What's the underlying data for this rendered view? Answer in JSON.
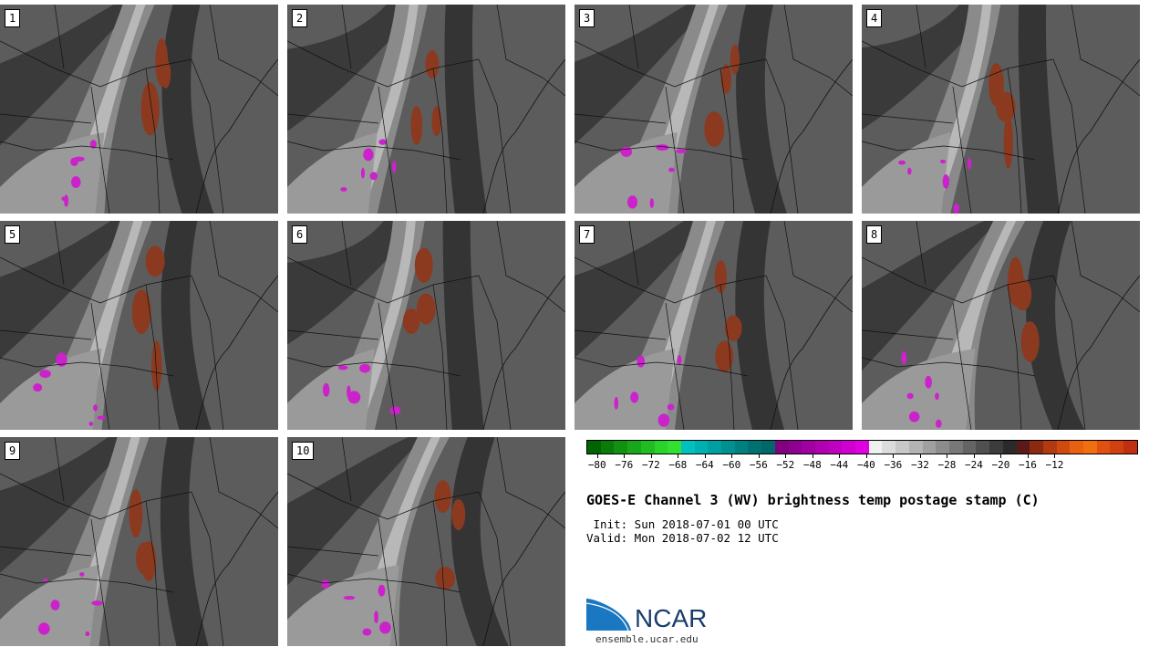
{
  "panels": [
    {
      "label": "1"
    },
    {
      "label": "2"
    },
    {
      "label": "3"
    },
    {
      "label": "4"
    },
    {
      "label": "5"
    },
    {
      "label": "6"
    },
    {
      "label": "7"
    },
    {
      "label": "8"
    },
    {
      "label": "9"
    },
    {
      "label": "10"
    }
  ],
  "colorbar": {
    "colors": [
      "#006400",
      "#0a7a0a",
      "#129012",
      "#1aa61a",
      "#22bc22",
      "#2ad22a",
      "#32e032",
      "#00c0c0",
      "#00b0b0",
      "#00a0a0",
      "#009090",
      "#008080",
      "#007070",
      "#006868",
      "#800080",
      "#900090",
      "#a000a0",
      "#b000b0",
      "#c000c0",
      "#d000d0",
      "#e000e0",
      "#f0f0f0",
      "#dcdcdc",
      "#c8c8c8",
      "#b4b4b4",
      "#a0a0a0",
      "#8c8c8c",
      "#787878",
      "#646464",
      "#505050",
      "#3c3c3c",
      "#2a2a2a",
      "#5a1a1a",
      "#8b2a10",
      "#b23a10",
      "#d04a10",
      "#e86010",
      "#f07010",
      "#e05010",
      "#d04010",
      "#c03010"
    ],
    "tick_labels": [
      "−80",
      "−76",
      "−72",
      "−68",
      "−64",
      "−60",
      "−56",
      "−52",
      "−48",
      "−44",
      "−40",
      "−36",
      "−32",
      "−28",
      "−24",
      "−20",
      "−16",
      "−12"
    ]
  },
  "title": "GOES-E Channel 3 (WV) brightness temp postage stamp (C)",
  "init_line": " Init: Sun 2018-07-01 00 UTC",
  "valid_line": "Valid: Mon 2018-07-02 12 UTC",
  "logo": {
    "text": "NCAR",
    "color": "#1a3d6e",
    "accent": "#1a78c2"
  },
  "site": "ensemble.ucar.edu"
}
